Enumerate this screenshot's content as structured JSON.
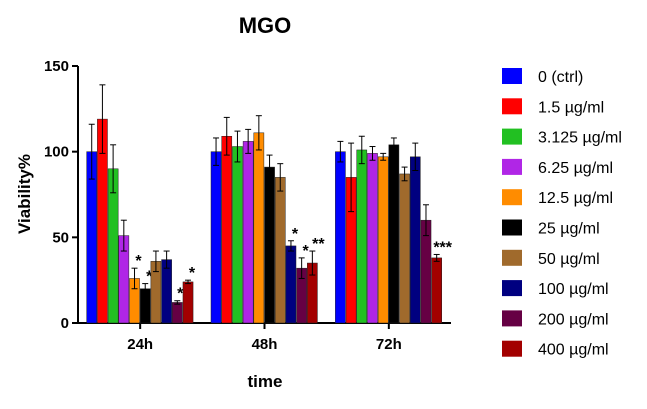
{
  "chart_data": {
    "type": "bar",
    "title": "MGO",
    "xlabel": "time",
    "ylabel": "Viability%",
    "ylim": [
      0,
      150
    ],
    "yticks": [
      0,
      50,
      100,
      150
    ],
    "categories": [
      "24h",
      "48h",
      "72h"
    ],
    "error_bars": true,
    "legend_position": "right",
    "series": [
      {
        "name": "0 (ctrl)",
        "color": "#0000ff",
        "values": [
          100,
          100,
          100
        ],
        "errors": [
          16,
          8,
          6
        ],
        "stars": [
          "",
          "",
          ""
        ]
      },
      {
        "name": "1.5 µg/ml",
        "color": "#ff0000",
        "values": [
          119,
          109,
          85
        ],
        "errors": [
          20,
          11,
          20
        ],
        "stars": [
          "",
          "",
          ""
        ]
      },
      {
        "name": "3.125 µg/ml",
        "color": "#22c022",
        "values": [
          90,
          103,
          101
        ],
        "errors": [
          14,
          9,
          8
        ],
        "stars": [
          "",
          "",
          ""
        ]
      },
      {
        "name": "6.25 µg/ml",
        "color": "#b026e6",
        "values": [
          51,
          106,
          99
        ],
        "errors": [
          9,
          7,
          4
        ],
        "stars": [
          "",
          "",
          ""
        ]
      },
      {
        "name": "12.5 µg/ml",
        "color": "#ff8c00",
        "values": [
          26,
          111,
          97
        ],
        "errors": [
          6,
          10,
          2
        ],
        "stars": [
          "*",
          "",
          ""
        ]
      },
      {
        "name": "25 µg/ml",
        "color": "#000000",
        "values": [
          20,
          91,
          104
        ],
        "errors": [
          3,
          7,
          4
        ],
        "stars": [
          "*",
          "",
          ""
        ]
      },
      {
        "name": "50 µg/ml",
        "color": "#a06a2c",
        "values": [
          36,
          85,
          87
        ],
        "errors": [
          6,
          8,
          4
        ],
        "stars": [
          "",
          "",
          ""
        ]
      },
      {
        "name": "100 µg/ml",
        "color": "#000080",
        "values": [
          37,
          45,
          97
        ],
        "errors": [
          5,
          3,
          8
        ],
        "stars": [
          "",
          "*",
          ""
        ]
      },
      {
        "name": "200 µg/ml",
        "color": "#660044",
        "values": [
          12,
          32,
          60
        ],
        "errors": [
          1,
          6,
          9
        ],
        "stars": [
          "**",
          "*",
          ""
        ]
      },
      {
        "name": "400 µg/ml",
        "color": "#a30000",
        "values": [
          24,
          35,
          38
        ],
        "errors": [
          1,
          7,
          2
        ],
        "stars": [
          "*",
          "**",
          "***"
        ]
      }
    ]
  }
}
